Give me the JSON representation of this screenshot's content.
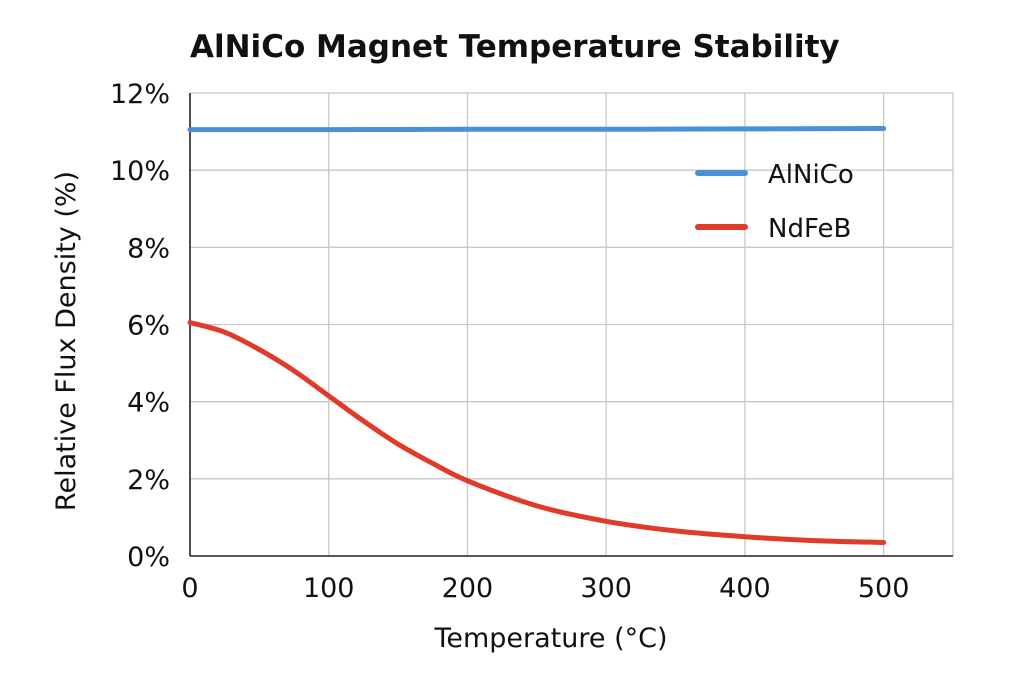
{
  "chart_data": {
    "type": "line",
    "title": "AlNiCo Magnet Temperature Stability",
    "xlabel": "Temperature (°C)",
    "ylabel": "Relative Flux Density (%)",
    "xlim": [
      0,
      550
    ],
    "ylim": [
      0,
      12
    ],
    "x_ticks": [
      0,
      100,
      200,
      300,
      400,
      500
    ],
    "x_tick_labels": [
      "0",
      "100",
      "200",
      "300",
      "400",
      "500"
    ],
    "y_ticks": [
      0,
      2,
      4,
      6,
      8,
      10,
      12
    ],
    "y_tick_labels": [
      "0%",
      "2%",
      "4%",
      "6%",
      "8%",
      "10%",
      "12%"
    ],
    "grid": true,
    "legend_position": "top-right",
    "series": [
      {
        "name": "AlNiCo",
        "color": "#4a90d9",
        "x": [
          0,
          100,
          200,
          300,
          400,
          500
        ],
        "y": [
          11.05,
          11.05,
          11.06,
          11.06,
          11.07,
          11.08
        ]
      },
      {
        "name": "NdFeB",
        "color": "#e03a2a",
        "x": [
          0,
          25,
          50,
          75,
          100,
          125,
          150,
          175,
          200,
          250,
          300,
          350,
          400,
          450,
          500
        ],
        "y": [
          6.05,
          5.8,
          5.35,
          4.8,
          4.15,
          3.5,
          2.9,
          2.4,
          1.95,
          1.3,
          0.9,
          0.65,
          0.5,
          0.4,
          0.35
        ]
      }
    ]
  }
}
